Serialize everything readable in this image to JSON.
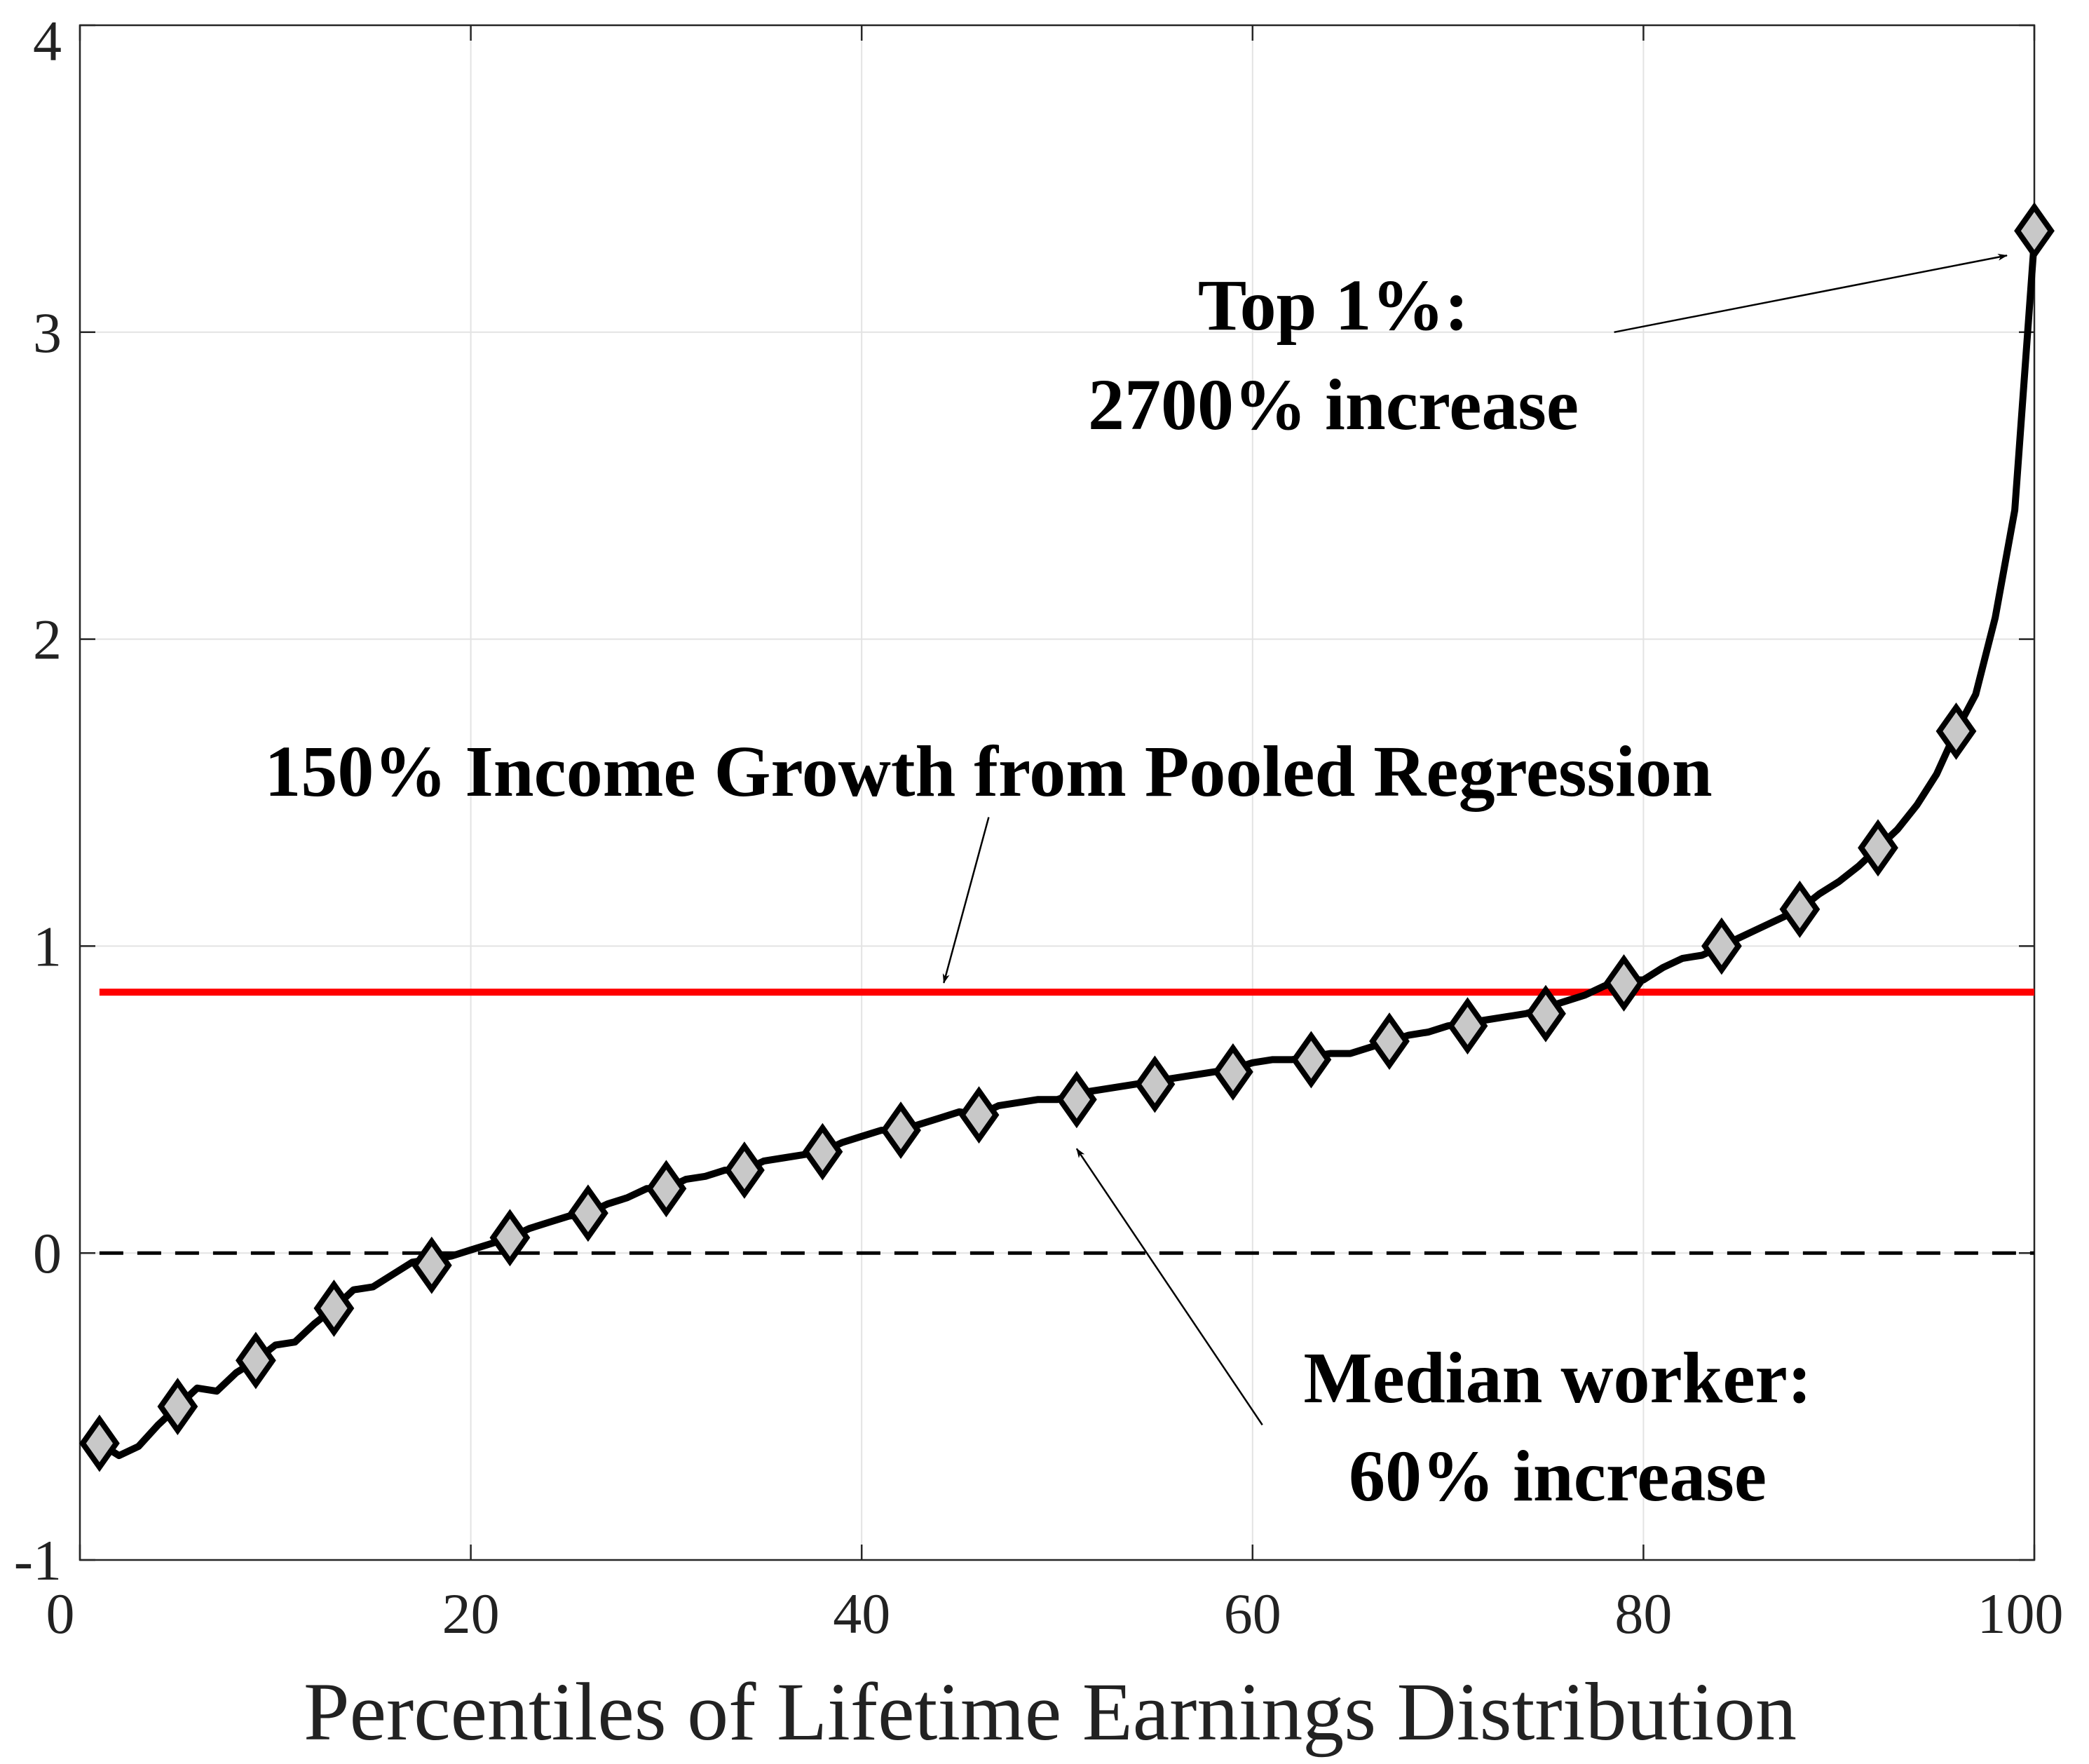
{
  "chart_data": {
    "type": "line",
    "title": "",
    "xlabel": "Percentiles of Lifetime Earnings Distribution",
    "ylabel": "",
    "xlim": [
      0,
      100
    ],
    "ylim": [
      -1,
      4
    ],
    "xticks": [
      0,
      20,
      40,
      60,
      80,
      100
    ],
    "yticks": [
      -1,
      0,
      1,
      2,
      3,
      4
    ],
    "xtick_labels": [
      "0",
      "20",
      "40",
      "60",
      "80",
      "100"
    ],
    "ytick_labels": [
      "-1",
      "0",
      "1",
      "2",
      "3",
      "4"
    ],
    "grid": true,
    "legend": "none",
    "colors": {
      "series_line": "#000000",
      "marker_fill": "#c8c8c8",
      "marker_edge": "#000000",
      "reference_line": "#ff0000",
      "zero_line": "#000000",
      "grid": "#e3e3e3",
      "axis": "#262626"
    },
    "series": [
      {
        "x": [
          1,
          2,
          3,
          4,
          5,
          6,
          7,
          8,
          9,
          10,
          11,
          12,
          13,
          14,
          15,
          16,
          17,
          18,
          19,
          20,
          21,
          22,
          23,
          24,
          25,
          26,
          27,
          28,
          29,
          30,
          31,
          32,
          33,
          34,
          35,
          36,
          37,
          38,
          39,
          40,
          41,
          42,
          43,
          44,
          45,
          46,
          47,
          48,
          49,
          50,
          51,
          52,
          53,
          54,
          55,
          56,
          57,
          58,
          59,
          60,
          61,
          62,
          63,
          64,
          65,
          66,
          67,
          68,
          69,
          70,
          71,
          72,
          73,
          74,
          75,
          76,
          77,
          78,
          79,
          80,
          81,
          82,
          83,
          84,
          85,
          86,
          87,
          88,
          89,
          90,
          91,
          92,
          93,
          94,
          95,
          96,
          97,
          98,
          99,
          100
        ],
        "values": [
          -0.62,
          -0.66,
          -0.63,
          -0.56,
          -0.5,
          -0.44,
          -0.45,
          -0.39,
          -0.35,
          -0.3,
          -0.29,
          -0.23,
          -0.18,
          -0.12,
          -0.11,
          -0.07,
          -0.03,
          -0.02,
          -0.01,
          0.01,
          0.03,
          0.05,
          0.08,
          0.1,
          0.12,
          0.13,
          0.16,
          0.18,
          0.21,
          0.21,
          0.24,
          0.25,
          0.27,
          0.27,
          0.3,
          0.31,
          0.32,
          0.33,
          0.36,
          0.38,
          0.4,
          0.4,
          0.42,
          0.44,
          0.46,
          0.45,
          0.48,
          0.49,
          0.5,
          0.5,
          0.52,
          0.53,
          0.54,
          0.55,
          0.56,
          0.57,
          0.58,
          0.59,
          0.6,
          0.62,
          0.63,
          0.63,
          0.64,
          0.65,
          0.65,
          0.67,
          0.69,
          0.71,
          0.72,
          0.74,
          0.75,
          0.76,
          0.77,
          0.78,
          0.8,
          0.82,
          0.84,
          0.87,
          0.89,
          0.89,
          0.93,
          0.96,
          0.97,
          1.0,
          1.03,
          1.06,
          1.09,
          1.12,
          1.17,
          1.21,
          1.26,
          1.32,
          1.38,
          1.46,
          1.56,
          1.7,
          1.82,
          2.07,
          2.42,
          3.3
        ]
      }
    ],
    "marker_points": {
      "x": [
        1,
        5,
        9,
        13,
        18,
        22,
        26,
        30,
        34,
        38,
        42,
        46,
        51,
        55,
        59,
        63,
        67,
        71,
        75,
        79,
        84,
        88,
        92,
        96,
        100
      ],
      "values": [
        -0.62,
        -0.5,
        -0.35,
        -0.18,
        -0.04,
        0.05,
        0.13,
        0.21,
        0.27,
        0.33,
        0.4,
        0.45,
        0.5,
        0.55,
        0.59,
        0.63,
        0.69,
        0.74,
        0.78,
        0.88,
        1.0,
        1.12,
        1.32,
        1.7,
        3.33
      ]
    },
    "reference_lines": [
      {
        "axis": "y",
        "value": 0.85,
        "xrange": [
          1,
          100
        ],
        "style": "solid",
        "color": "#ff0000"
      },
      {
        "axis": "y",
        "value": 0,
        "xrange": [
          1,
          100
        ],
        "style": "dashed",
        "color": "#000000"
      }
    ],
    "annotations": [
      {
        "lines": [
          "Top 1%:",
          "2700% increase"
        ],
        "arrow_tail": [
          78.5,
          3.0
        ],
        "arrow_head": [
          98.6,
          3.25
        ]
      },
      {
        "lines": [
          "150% Income Growth from Pooled Regression"
        ],
        "arrow_tail": [
          46.5,
          1.42
        ],
        "arrow_head": [
          44.2,
          0.88
        ]
      },
      {
        "lines": [
          "Median worker:",
          "60% increase"
        ],
        "arrow_tail": [
          60.5,
          -0.56
        ],
        "arrow_head": [
          51.0,
          0.34
        ]
      }
    ]
  }
}
